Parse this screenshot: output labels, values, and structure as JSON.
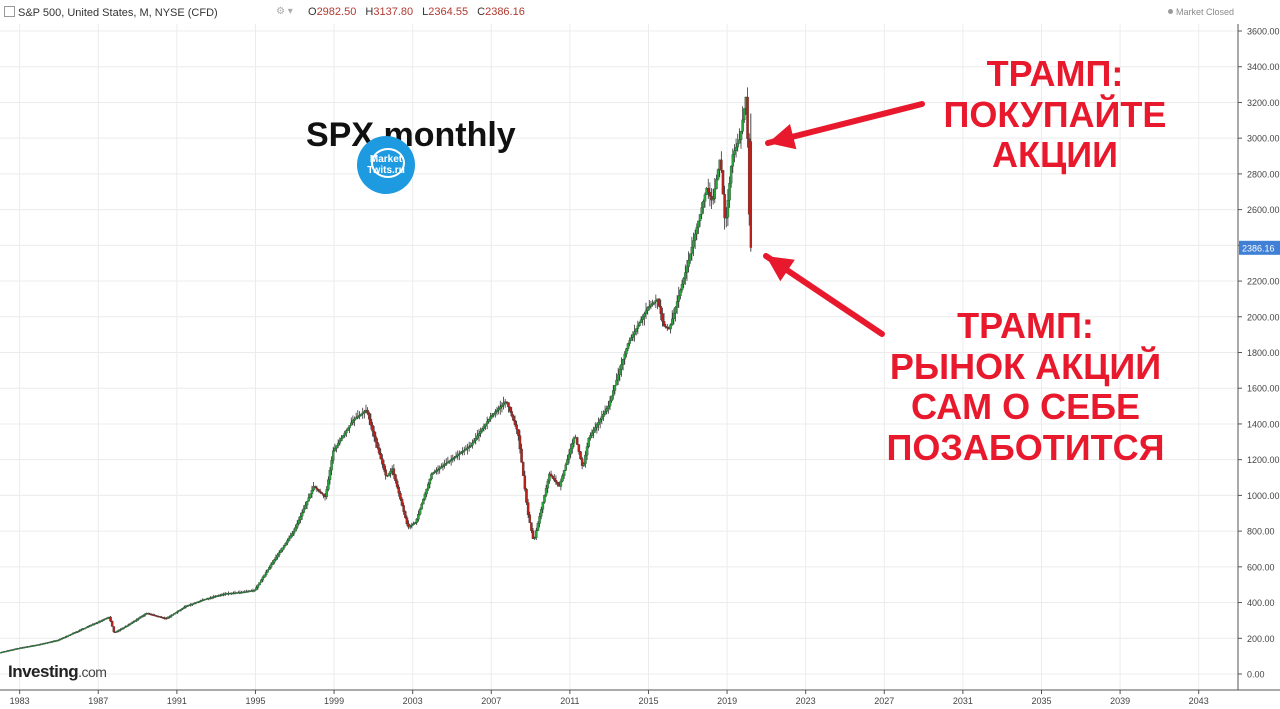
{
  "header": {
    "symbol": "S&P 500, United States, M, NYSE (CFD)",
    "ohlc": [
      {
        "label": "O",
        "value": "2982.50"
      },
      {
        "label": "H",
        "value": "3137.80"
      },
      {
        "label": "L",
        "value": "2364.55"
      },
      {
        "label": "C",
        "value": "2386.16"
      }
    ],
    "market_status": "Market Closed"
  },
  "annotations": {
    "top": [
      "ТРАМП:",
      "ПОКУПАЙТЕ",
      "АКЦИИ"
    ],
    "bottom": [
      "ТРАМП:",
      "РЫНОК АКЦИЙ",
      "САМ О СЕБЕ",
      "ПОЗАБОТИТСЯ"
    ]
  },
  "overlay_title": "SPX monthly",
  "watermark": {
    "line1": "Market",
    "line2": "Twits.ru"
  },
  "logo": {
    "brand": "Investing",
    "domain": ".com"
  },
  "colors": {
    "up": "#26a63a",
    "down": "#b8211b",
    "annotation": "#e8192c",
    "last_price_tag": "#3f7fd6",
    "watermark": "#1e9be0"
  },
  "chart_data": {
    "type": "line",
    "title": "",
    "xlabel": "",
    "ylabel": "",
    "x_ticks": [
      1983,
      1987,
      1991,
      1995,
      1999,
      2003,
      2007,
      2011,
      2015,
      2019,
      2023,
      2027,
      2031,
      2035,
      2039,
      2043
    ],
    "xlim": [
      1982,
      2045
    ],
    "y_ticks": [
      "0.00",
      "200.00",
      "400.00",
      "600.00",
      "800.00",
      "1000.00",
      "1200.00",
      "1400.00",
      "1600.00",
      "1800.00",
      "2000.00",
      "2200.00",
      "2400.00",
      "2600.00",
      "2800.00",
      "3000.00",
      "3200.00",
      "3400.00",
      "3600.00"
    ],
    "ylim": [
      0,
      3600
    ],
    "last_price": "2386.16",
    "grid": true,
    "series": [
      {
        "values": [
          [
            1982.0,
            120
          ],
          [
            1983.0,
            145
          ],
          [
            1984.0,
            165
          ],
          [
            1985.0,
            190
          ],
          [
            1986.0,
            240
          ],
          [
            1987.6,
            320
          ],
          [
            1987.85,
            230
          ],
          [
            1988.5,
            270
          ],
          [
            1989.5,
            340
          ],
          [
            1990.5,
            310
          ],
          [
            1991.5,
            380
          ],
          [
            1992.5,
            420
          ],
          [
            1993.5,
            450
          ],
          [
            1994.5,
            460
          ],
          [
            1995.0,
            470
          ],
          [
            1996.0,
            640
          ],
          [
            1997.0,
            800
          ],
          [
            1998.0,
            1050
          ],
          [
            1998.6,
            990
          ],
          [
            1999.0,
            1250
          ],
          [
            2000.0,
            1420
          ],
          [
            2000.7,
            1480
          ],
          [
            2001.0,
            1360
          ],
          [
            2001.7,
            1100
          ],
          [
            2002.0,
            1150
          ],
          [
            2002.8,
            820
          ],
          [
            2003.2,
            850
          ],
          [
            2004.0,
            1120
          ],
          [
            2005.0,
            1200
          ],
          [
            2006.0,
            1280
          ],
          [
            2007.0,
            1440
          ],
          [
            2007.8,
            1530
          ],
          [
            2008.4,
            1350
          ],
          [
            2008.9,
            900
          ],
          [
            2009.2,
            740
          ],
          [
            2010.0,
            1120
          ],
          [
            2010.5,
            1050
          ],
          [
            2011.3,
            1340
          ],
          [
            2011.7,
            1150
          ],
          [
            2012.0,
            1320
          ],
          [
            2013.0,
            1500
          ],
          [
            2014.0,
            1850
          ],
          [
            2015.0,
            2050
          ],
          [
            2015.5,
            2100
          ],
          [
            2015.8,
            1950
          ],
          [
            2016.1,
            1930
          ],
          [
            2017.0,
            2280
          ],
          [
            2018.0,
            2720
          ],
          [
            2018.3,
            2640
          ],
          [
            2018.7,
            2900
          ],
          [
            2018.95,
            2500
          ],
          [
            2019.3,
            2900
          ],
          [
            2019.7,
            3000
          ],
          [
            2020.0,
            3230
          ],
          [
            2020.1,
            2950
          ],
          [
            2020.2,
            2386
          ]
        ]
      }
    ]
  }
}
